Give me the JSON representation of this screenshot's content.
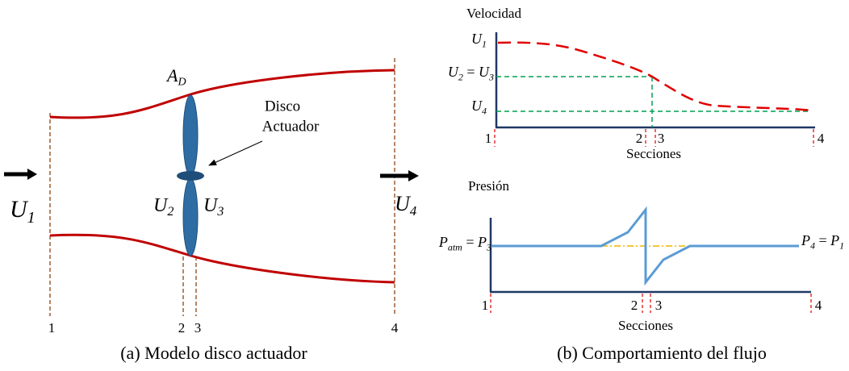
{
  "panel_a": {
    "caption": "(a) Modelo disco actuador",
    "disk_area": [
      {
        "symbol": "A",
        "sub": "D"
      }
    ],
    "disk_label": [
      "Disco",
      "Actuador"
    ],
    "velocities": [
      [
        {
          "symbol": "U",
          "sub": "1"
        }
      ],
      [
        {
          "symbol": "U",
          "sub": "2"
        }
      ],
      [
        {
          "symbol": "U",
          "sub": "3"
        }
      ],
      [
        {
          "symbol": "U",
          "sub": "4"
        }
      ]
    ],
    "sections": [
      "1",
      "2",
      "3",
      "4"
    ]
  },
  "panel_b": {
    "caption": "(b) Comportamiento del flujo",
    "velocity_chart": {
      "title": "Velocidad",
      "x_label": "Secciones",
      "sections": [
        "1",
        "2",
        "3",
        "4"
      ],
      "levels": [
        [
          {
            "symbol": "U",
            "sub": "1"
          }
        ],
        [
          {
            "symbol": "U",
            "sub": "2"
          },
          {
            "text": " = "
          },
          {
            "symbol": "U",
            "sub": "3"
          }
        ],
        [
          {
            "symbol": "U",
            "sub": "4"
          }
        ]
      ]
    },
    "pressure_chart": {
      "title": "Presión",
      "x_label": "Secciones",
      "sections": [
        "1",
        "2",
        "3",
        "4"
      ],
      "levels": [
        [
          {
            "symbol": "P",
            "sub": "atm"
          },
          {
            "text": " = "
          },
          {
            "symbol": "P",
            "sub": "3"
          }
        ],
        [
          {
            "symbol": "P",
            "sub": "4"
          },
          {
            "text": " = "
          },
          {
            "symbol": "P",
            "sub": "1"
          }
        ]
      ]
    }
  }
}
